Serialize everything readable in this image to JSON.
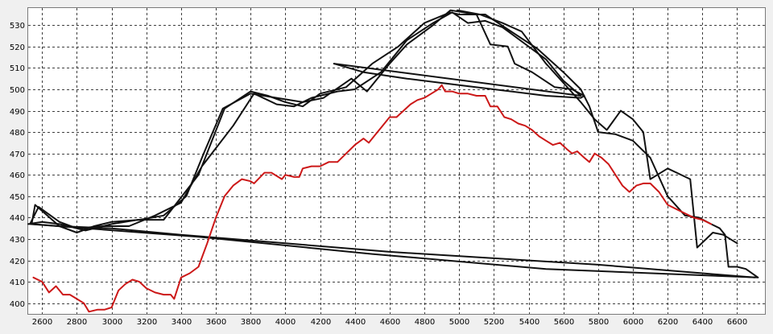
{
  "chart_data": {
    "type": "line",
    "xlim": [
      2520,
      6760
    ],
    "ylim": [
      395,
      538
    ],
    "x_ticks": [
      2600,
      2800,
      3000,
      3200,
      3400,
      3600,
      3800,
      4000,
      4200,
      4400,
      4600,
      4800,
      5000,
      5200,
      5400,
      5600,
      5800,
      6000,
      6200,
      6400,
      6600
    ],
    "y_ticks": [
      400,
      410,
      420,
      430,
      440,
      450,
      460,
      470,
      480,
      490,
      500,
      510,
      520,
      530
    ],
    "grid": true,
    "colors": {
      "black": "#111111",
      "red": "#cc1818"
    },
    "series": [
      {
        "color": "#111111",
        "points": [
          [
            2520,
            437
          ],
          [
            2600,
            438
          ],
          [
            2700,
            437
          ],
          [
            2850,
            434
          ],
          [
            3000,
            437
          ],
          [
            3150,
            439
          ],
          [
            3300,
            439
          ],
          [
            3500,
            460
          ],
          [
            3650,
            491
          ],
          [
            3800,
            499
          ],
          [
            3900,
            497
          ],
          [
            4000,
            494
          ],
          [
            4100,
            492
          ],
          [
            4200,
            498
          ],
          [
            4350,
            501
          ],
          [
            4500,
            512
          ],
          [
            4650,
            520
          ],
          [
            4800,
            531
          ],
          [
            4950,
            536
          ],
          [
            5000,
            535
          ],
          [
            5150,
            535
          ],
          [
            5300,
            527
          ],
          [
            5450,
            519
          ],
          [
            5600,
            508
          ],
          [
            5700,
            500
          ],
          [
            5750,
            492
          ],
          [
            5800,
            480
          ],
          [
            5900,
            479
          ],
          [
            6000,
            476
          ],
          [
            6100,
            468
          ],
          [
            6200,
            450
          ],
          [
            6300,
            441
          ],
          [
            6380,
            440
          ],
          [
            6450,
            437
          ],
          [
            6500,
            435
          ],
          [
            6530,
            432
          ],
          [
            6550,
            417
          ],
          [
            6600,
            417
          ],
          [
            6650,
            416
          ],
          [
            6720,
            412
          ],
          [
            5500,
            416
          ],
          [
            4500,
            423
          ],
          [
            3500,
            431
          ],
          [
            2530,
            437
          ],
          [
            2580,
            445
          ],
          [
            2700,
            438
          ],
          [
            2800,
            435
          ],
          [
            2950,
            436
          ],
          [
            3100,
            436
          ],
          [
            3250,
            441
          ],
          [
            3400,
            447
          ],
          [
            3520,
            464
          ],
          [
            3700,
            483
          ],
          [
            3820,
            498
          ],
          [
            3950,
            493
          ],
          [
            4050,
            492
          ],
          [
            4150,
            496
          ],
          [
            4300,
            499
          ],
          [
            4400,
            500
          ],
          [
            4550,
            508
          ],
          [
            4700,
            523
          ],
          [
            4850,
            531
          ],
          [
            4960,
            536
          ],
          [
            5050,
            531
          ],
          [
            5150,
            532
          ],
          [
            5250,
            529
          ],
          [
            5400,
            520
          ],
          [
            5500,
            514
          ],
          [
            5600,
            504
          ],
          [
            5700,
            497
          ],
          [
            4280,
            512
          ]
        ]
      },
      {
        "color": "#111111",
        "points": [
          [
            4280,
            512
          ],
          [
            4450,
            508
          ],
          [
            4700,
            505
          ],
          [
            5000,
            502
          ],
          [
            5300,
            499
          ],
          [
            5500,
            497
          ],
          [
            5700,
            496
          ],
          [
            5720,
            497
          ],
          [
            5650,
            500
          ],
          [
            5550,
            501
          ],
          [
            5420,
            508
          ],
          [
            5320,
            512
          ],
          [
            5280,
            520
          ],
          [
            5180,
            521
          ],
          [
            5100,
            535
          ],
          [
            4950,
            537
          ],
          [
            4850,
            530
          ],
          [
            4700,
            521
          ],
          [
            4600,
            512
          ],
          [
            4470,
            499
          ],
          [
            4380,
            505
          ],
          [
            4220,
            496
          ],
          [
            4100,
            494
          ],
          [
            3950,
            496
          ],
          [
            3800,
            498
          ],
          [
            3640,
            491
          ],
          [
            3530,
            470
          ],
          [
            3430,
            450
          ],
          [
            3300,
            441
          ],
          [
            3160,
            439
          ],
          [
            3000,
            438
          ],
          [
            2900,
            436
          ],
          [
            2800,
            433
          ],
          [
            2700,
            436
          ],
          [
            2560,
            446
          ],
          [
            2540,
            437
          ],
          [
            2700,
            436
          ],
          [
            3000,
            435
          ],
          [
            3400,
            432
          ],
          [
            4000,
            428
          ],
          [
            4600,
            424
          ],
          [
            5200,
            421
          ],
          [
            5800,
            418
          ],
          [
            6400,
            414
          ],
          [
            6700,
            412
          ]
        ]
      },
      {
        "color": "#111111",
        "points": [
          [
            4990,
            537
          ],
          [
            5120,
            535
          ],
          [
            5250,
            531
          ],
          [
            5360,
            527
          ],
          [
            5500,
            512
          ],
          [
            5600,
            503
          ],
          [
            5700,
            494
          ],
          [
            5780,
            486
          ],
          [
            5850,
            481
          ],
          [
            5930,
            490
          ],
          [
            6000,
            486
          ],
          [
            6060,
            480
          ],
          [
            6100,
            458
          ],
          [
            6200,
            463
          ],
          [
            6330,
            458
          ],
          [
            6370,
            426
          ],
          [
            6460,
            433
          ],
          [
            6520,
            432
          ],
          [
            6600,
            428
          ]
        ]
      },
      {
        "color": "#cc1818",
        "points": [
          [
            2550,
            412
          ],
          [
            2600,
            410
          ],
          [
            2640,
            405
          ],
          [
            2680,
            408
          ],
          [
            2720,
            404
          ],
          [
            2760,
            404
          ],
          [
            2800,
            402
          ],
          [
            2840,
            400
          ],
          [
            2870,
            396
          ],
          [
            2920,
            397
          ],
          [
            2960,
            397
          ],
          [
            3000,
            398
          ],
          [
            3040,
            406
          ],
          [
            3080,
            409
          ],
          [
            3120,
            411
          ],
          [
            3160,
            410
          ],
          [
            3200,
            407
          ],
          [
            3250,
            405
          ],
          [
            3300,
            404
          ],
          [
            3340,
            404
          ],
          [
            3360,
            402
          ],
          [
            3400,
            412
          ],
          [
            3450,
            414
          ],
          [
            3500,
            417
          ],
          [
            3550,
            428
          ],
          [
            3600,
            440
          ],
          [
            3650,
            450
          ],
          [
            3700,
            455
          ],
          [
            3750,
            458
          ],
          [
            3800,
            457
          ],
          [
            3820,
            456
          ],
          [
            3880,
            461
          ],
          [
            3920,
            461
          ],
          [
            3980,
            458
          ],
          [
            4000,
            460
          ],
          [
            4050,
            459
          ],
          [
            4080,
            459
          ],
          [
            4100,
            463
          ],
          [
            4150,
            464
          ],
          [
            4200,
            464
          ],
          [
            4250,
            466
          ],
          [
            4300,
            466
          ],
          [
            4350,
            470
          ],
          [
            4400,
            474
          ],
          [
            4450,
            477
          ],
          [
            4480,
            475
          ],
          [
            4520,
            479
          ],
          [
            4560,
            483
          ],
          [
            4600,
            487
          ],
          [
            4640,
            487
          ],
          [
            4680,
            490
          ],
          [
            4720,
            493
          ],
          [
            4760,
            495
          ],
          [
            4800,
            496
          ],
          [
            4840,
            498
          ],
          [
            4880,
            500
          ],
          [
            4900,
            502
          ],
          [
            4920,
            499
          ],
          [
            4960,
            499
          ],
          [
            5000,
            498
          ],
          [
            5050,
            498
          ],
          [
            5100,
            497
          ],
          [
            5150,
            497
          ],
          [
            5180,
            492
          ],
          [
            5220,
            492
          ],
          [
            5260,
            487
          ],
          [
            5300,
            486
          ],
          [
            5340,
            484
          ],
          [
            5380,
            483
          ],
          [
            5420,
            481
          ],
          [
            5460,
            478
          ],
          [
            5500,
            476
          ],
          [
            5540,
            474
          ],
          [
            5580,
            475
          ],
          [
            5620,
            472
          ],
          [
            5650,
            470
          ],
          [
            5680,
            471
          ],
          [
            5720,
            468
          ],
          [
            5750,
            466
          ],
          [
            5780,
            470
          ],
          [
            5820,
            468
          ],
          [
            5860,
            465
          ],
          [
            5900,
            460
          ],
          [
            5940,
            455
          ],
          [
            5980,
            452
          ],
          [
            6020,
            455
          ],
          [
            6060,
            456
          ],
          [
            6100,
            456
          ],
          [
            6150,
            452
          ],
          [
            6200,
            446
          ],
          [
            6250,
            444
          ],
          [
            6300,
            442
          ],
          [
            6350,
            440
          ],
          [
            6400,
            439
          ],
          [
            6450,
            437
          ]
        ]
      }
    ]
  }
}
